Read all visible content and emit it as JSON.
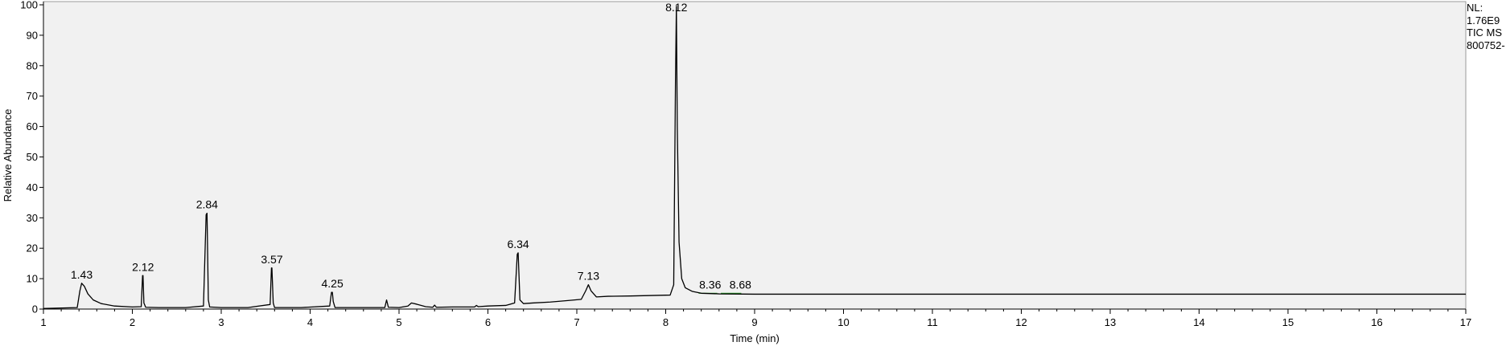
{
  "info": {
    "nl_label": "NL:",
    "nl_value": "1.76E9",
    "trace_label": "TIC  MS",
    "file_id": "800752-"
  },
  "colors": {
    "plot_background": "#f1f1f1",
    "trace": "#000000",
    "baseline_marker": "#2fa82f"
  },
  "chart_data": {
    "type": "line",
    "title": "",
    "xlabel": "Time (min)",
    "ylabel": "Relative Abundance",
    "xlim": [
      1,
      17
    ],
    "ylim": [
      0,
      100
    ],
    "x_ticks": [
      1,
      2,
      3,
      4,
      5,
      6,
      7,
      8,
      9,
      10,
      11,
      12,
      13,
      14,
      15,
      16,
      17
    ],
    "y_ticks": [
      0,
      10,
      20,
      30,
      40,
      50,
      60,
      70,
      80,
      90,
      100
    ],
    "grid": false,
    "series": [
      {
        "x": [
          1.0,
          1.38,
          1.41,
          1.43,
          1.46,
          1.5,
          1.56,
          1.65,
          1.8,
          2.0,
          2.1,
          2.115,
          2.12,
          2.13,
          2.15,
          2.3,
          2.6,
          2.8,
          2.83,
          2.84,
          2.855,
          2.87,
          3.0,
          3.3,
          3.55,
          3.565,
          3.57,
          3.585,
          3.6,
          3.9,
          4.22,
          4.24,
          4.25,
          4.26,
          4.28,
          4.6,
          4.84,
          4.86,
          4.88,
          5.0,
          5.1,
          5.14,
          5.2,
          5.3,
          5.38,
          5.4,
          5.42,
          5.6,
          5.85,
          5.87,
          5.89,
          6.0,
          6.2,
          6.3,
          6.33,
          6.34,
          6.36,
          6.4,
          6.5,
          6.7,
          6.9,
          7.05,
          7.1,
          7.13,
          7.16,
          7.22,
          7.35,
          7.6,
          7.9,
          8.05,
          8.09,
          8.11,
          8.12,
          8.13,
          8.15,
          8.18,
          8.22,
          8.3,
          8.4,
          8.6,
          9.0,
          12.0,
          17.0
        ],
        "y": [
          0.2,
          0.5,
          6.0,
          8.5,
          7.5,
          5.0,
          3.0,
          1.8,
          1.0,
          0.7,
          0.8,
          11.0,
          11.0,
          2.0,
          0.6,
          0.5,
          0.5,
          1.0,
          31.0,
          31.5,
          3.0,
          0.7,
          0.5,
          0.5,
          1.5,
          13.5,
          13.5,
          2.0,
          0.5,
          0.5,
          1.0,
          5.5,
          5.5,
          2.5,
          0.5,
          0.5,
          0.5,
          3.0,
          0.6,
          0.5,
          1.0,
          2.0,
          1.6,
          0.8,
          0.6,
          1.3,
          0.6,
          0.7,
          0.7,
          1.2,
          0.8,
          1.0,
          1.2,
          2.0,
          18.0,
          18.5,
          3.0,
          1.8,
          2.0,
          2.3,
          2.8,
          3.2,
          6.0,
          8.0,
          6.0,
          4.0,
          4.2,
          4.3,
          4.5,
          4.6,
          8.0,
          75.0,
          99.5,
          60.0,
          22.0,
          10.0,
          7.0,
          5.8,
          5.2,
          5.0,
          4.9,
          4.9,
          4.9
        ]
      }
    ],
    "peak_labels": [
      {
        "label": "1.43",
        "x": 1.43,
        "y": 8.5
      },
      {
        "label": "2.12",
        "x": 2.12,
        "y": 11.0
      },
      {
        "label": "2.84",
        "x": 2.84,
        "y": 31.5
      },
      {
        "label": "3.57",
        "x": 3.57,
        "y": 13.5
      },
      {
        "label": "4.25",
        "x": 4.25,
        "y": 5.5
      },
      {
        "label": "6.34",
        "x": 6.34,
        "y": 18.5
      },
      {
        "label": "7.13",
        "x": 7.13,
        "y": 8.0
      },
      {
        "label": "8.12",
        "x": 8.12,
        "y": 99.5
      },
      {
        "label": "8.36",
        "x": 8.5,
        "y": 5.2
      },
      {
        "label": "8.68",
        "x": 8.84,
        "y": 5.2
      }
    ],
    "baseline_segments": [
      {
        "x_start": 8.37,
        "x_end": 8.58,
        "y": 5.2
      },
      {
        "x_start": 8.62,
        "x_end": 8.85,
        "y": 5.2
      }
    ]
  }
}
